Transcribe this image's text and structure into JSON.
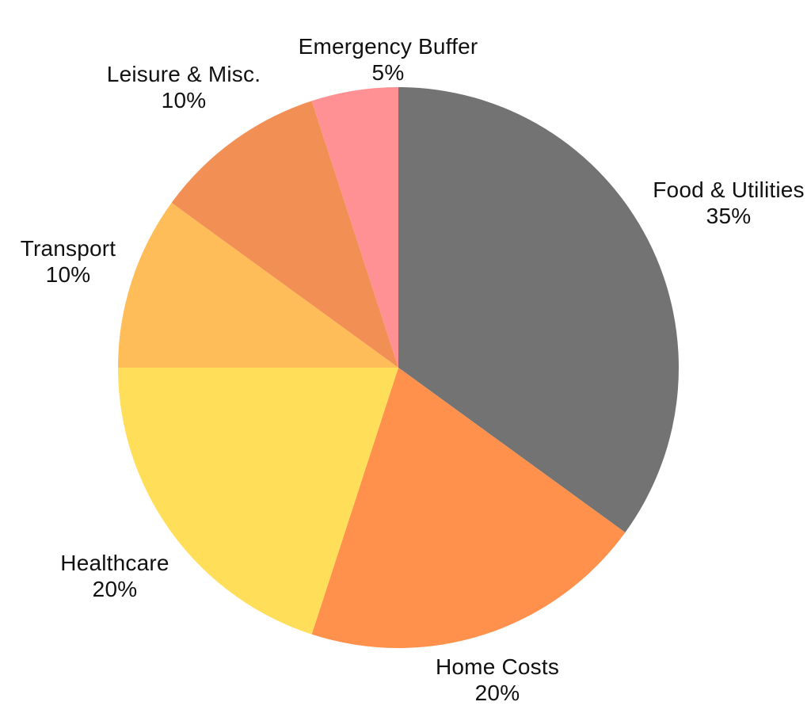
{
  "chart_data": {
    "type": "pie",
    "categories": [
      "Food & Utilities",
      "Home Costs",
      "Healthcare",
      "Transport",
      "Leisure & Misc.",
      "Emergency Buffer"
    ],
    "values": [
      35,
      20,
      20,
      10,
      10,
      5
    ],
    "percent_labels": [
      "35%",
      "20%",
      "20%",
      "10%",
      "10%",
      "5%"
    ],
    "colors": [
      "#737373",
      "#FF914D",
      "#FFDE59",
      "#FFBD59",
      "#F28F54",
      "#FF9194"
    ],
    "start_angle_deg": 0,
    "direction": "clockwise",
    "legend": "none",
    "label_style": "outside, two-line: category name above percent",
    "background": "#FFFFFF",
    "text_color": "#111111"
  }
}
